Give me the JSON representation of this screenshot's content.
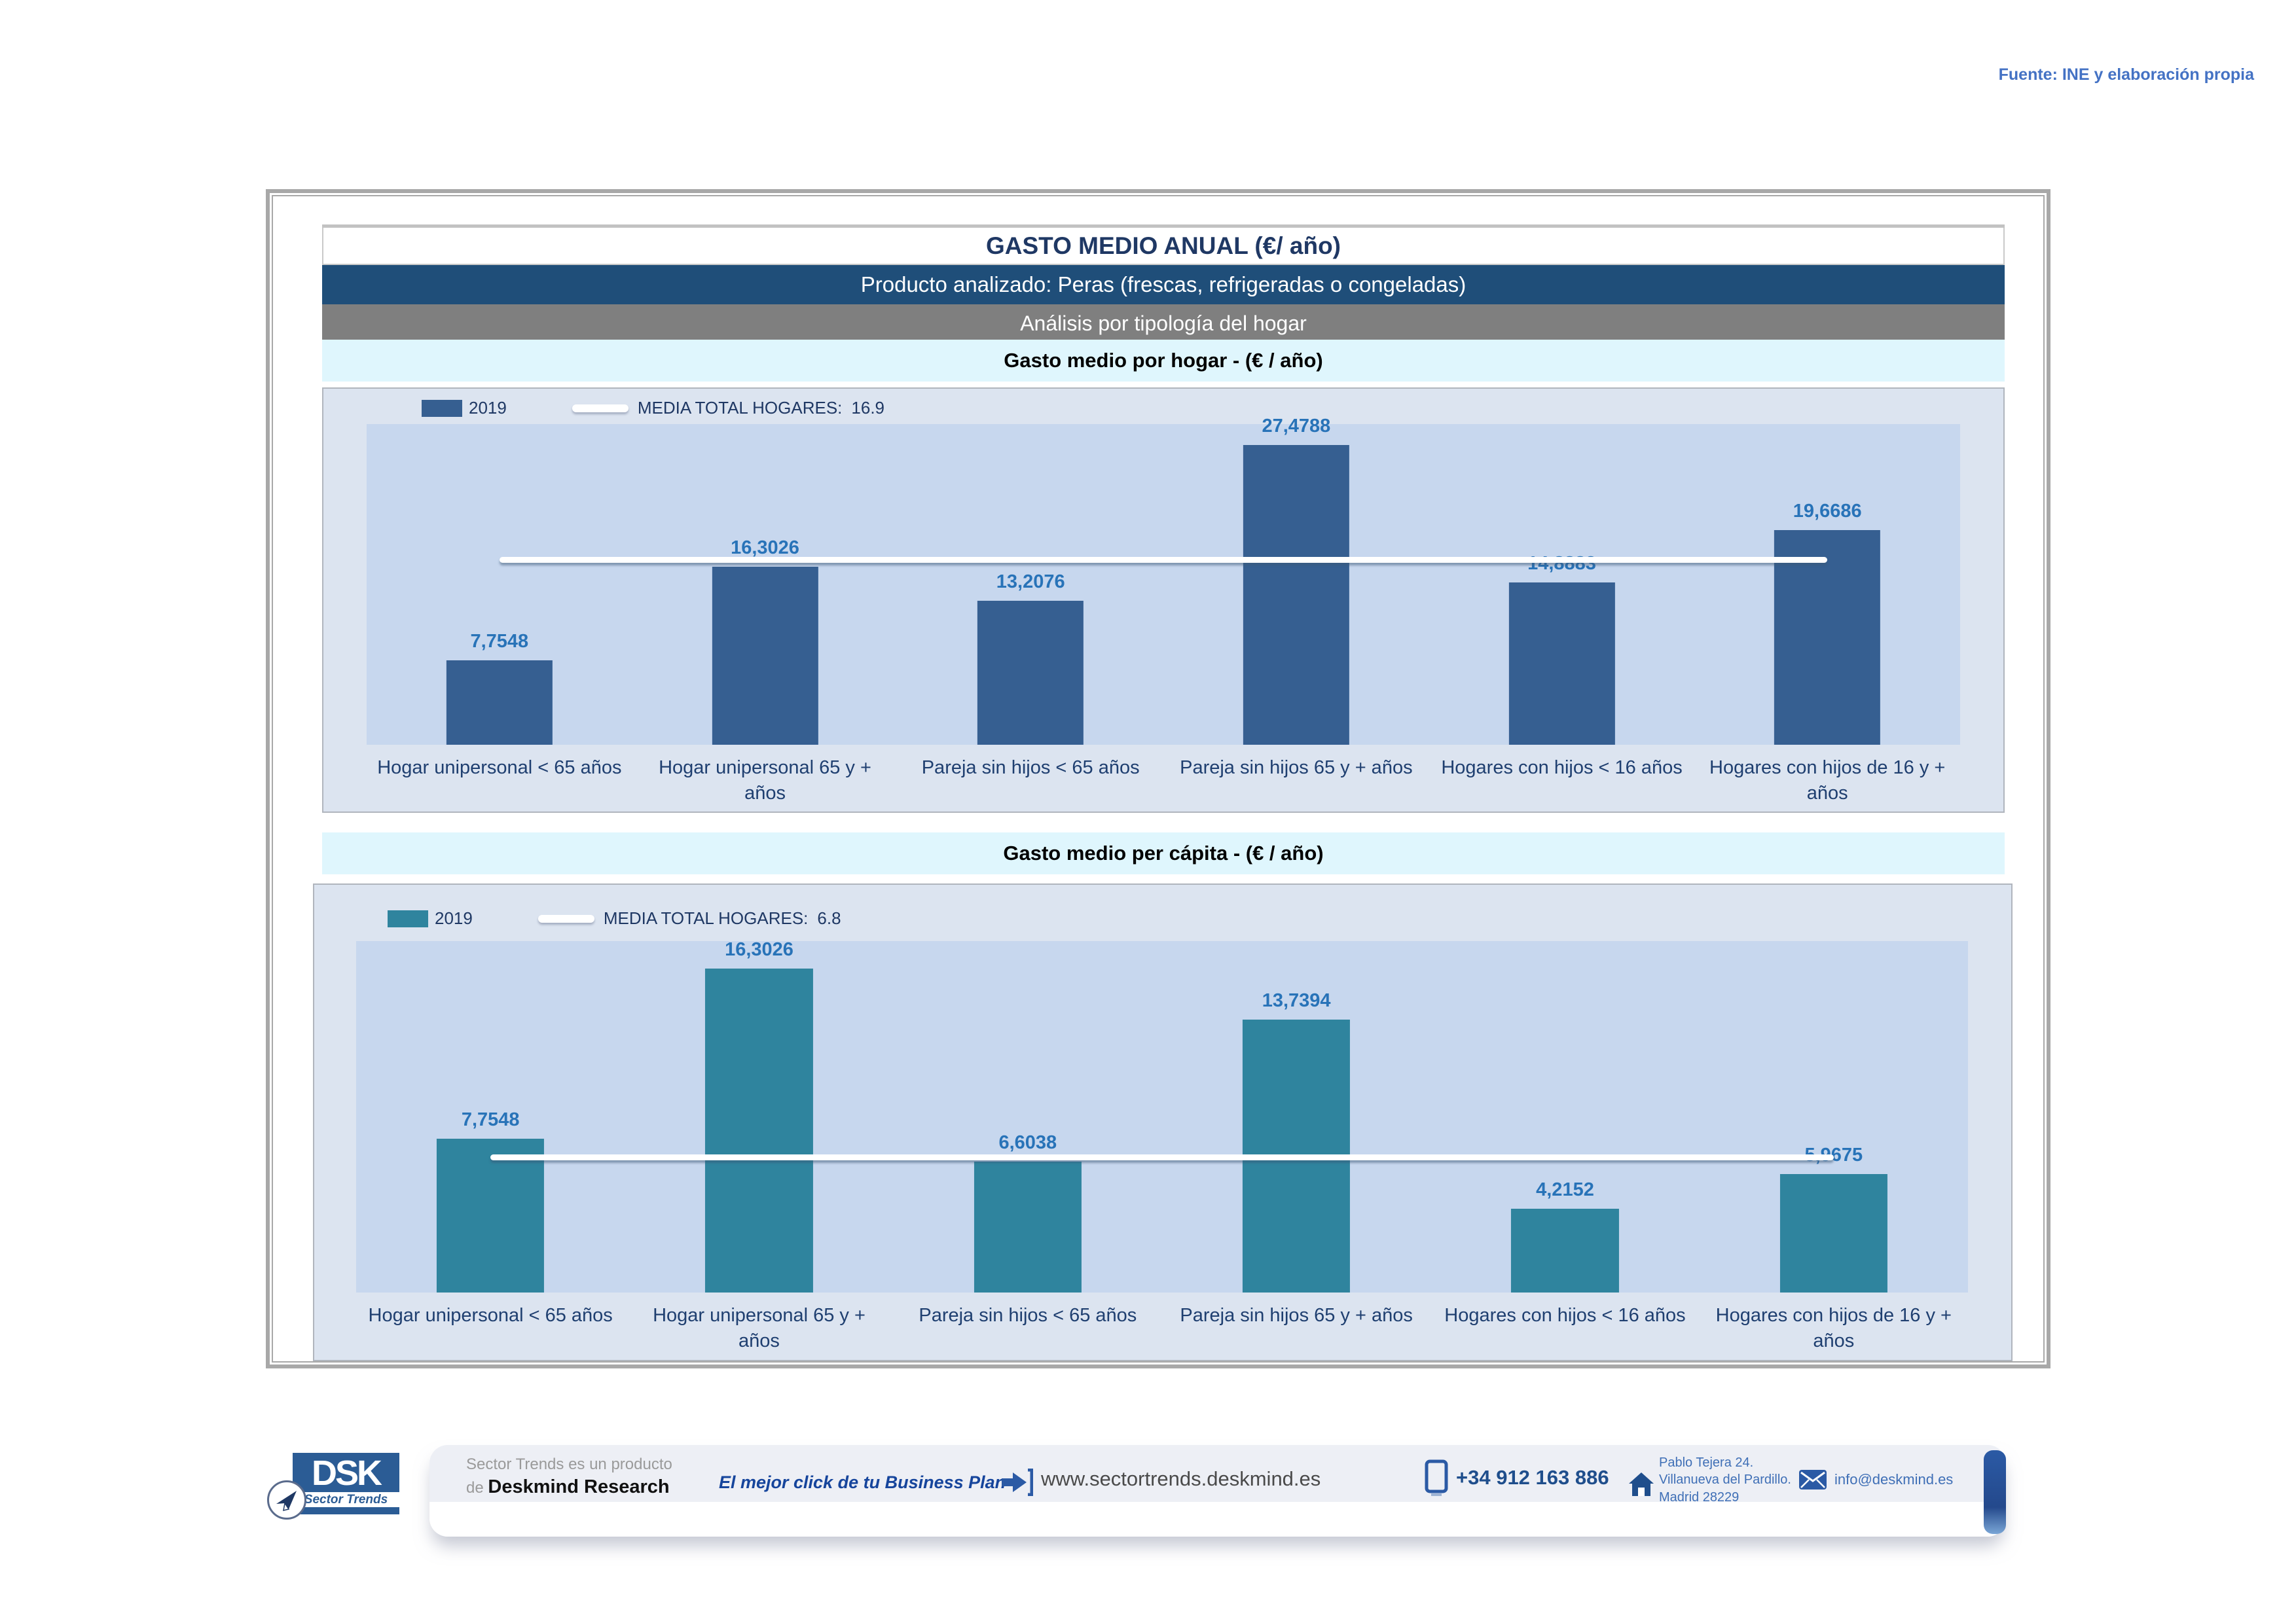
{
  "source_note": "Fuente: INE y elaboración propia",
  "header": {
    "title": "GASTO MEDIO ANUAL (€/ año)",
    "product": "Producto analizado: Peras (frescas, refrigeradas o congeladas)",
    "analysis": "Análisis por tipología del hogar"
  },
  "colors": {
    "navy_text": "#1F3864",
    "header_blue": "#1F4E79",
    "band_gray": "#7F7F7F",
    "band_cyan": "#DFF6FD",
    "panel_bg": "#DCE4F0",
    "plot_bg": "#C7D7EE",
    "bar_blue": "#365F91",
    "bar_teal": "#2F849E",
    "value_label_blue": "#2873B8",
    "accent_blue": "#2B5AA5",
    "source_blue": "#4472C4"
  },
  "chart_data": [
    {
      "type": "bar",
      "title": "Gasto medio por hogar -  (€ / año)",
      "legend": {
        "series_label": "2019",
        "media_label": "MEDIA TOTAL  HOGARES:",
        "media_value": "16.9"
      },
      "categories": [
        "Hogar unipersonal < 65 años",
        "Hogar unipersonal  65 y + años",
        "Pareja sin hijos < 65 años",
        "Pareja sin hijos 65 y + años",
        "Hogares con hijos < 16 años",
        "Hogares con hijos de 16 y + años"
      ],
      "values": [
        7.7548,
        16.3026,
        13.2076,
        27.4788,
        14.8883,
        19.6686
      ],
      "value_labels": [
        "7,7548",
        "16,3026",
        "13,2076",
        "27,4788",
        "14,8883",
        "19,6686"
      ],
      "media_total": 16.9,
      "axis_max": 29.4,
      "ylim": [
        0,
        29.4
      ],
      "bar_color": "#365F91",
      "grid": "off",
      "legend_position": "top-left"
    },
    {
      "type": "bar",
      "title": "Gasto medio per cápita -  (€ / año)",
      "legend": {
        "series_label": "2019",
        "media_label": "MEDIA TOTAL  HOGARES:",
        "media_value": "6.8"
      },
      "categories": [
        "Hogar unipersonal < 65 años",
        "Hogar unipersonal  65 y + años",
        "Pareja sin hijos < 65 años",
        "Pareja sin hijos 65 y + años",
        "Hogares con hijos < 16 años",
        "Hogares con hijos de 16 y + años"
      ],
      "values": [
        7.7548,
        16.3026,
        6.6038,
        13.7394,
        4.2152,
        5.9675
      ],
      "value_labels": [
        "7,7548",
        "16,3026",
        "6,6038",
        "13,7394",
        "4,2152",
        "5,9675"
      ],
      "media_total": 6.8,
      "axis_max": 17.7,
      "ylim": [
        0,
        17.7
      ],
      "bar_color": "#2F849E",
      "grid": "off",
      "legend_position": "top-left"
    }
  ],
  "footer": {
    "product_line1": "Sector Trends es un producto",
    "product_line2_prefix": "de ",
    "product_line2_bold": "Deskmind Research",
    "tagline": "El mejor click de tu Business Plan",
    "website": "www.sectortrends.deskmind.es",
    "phone": "+34 912 163 886",
    "address_line1": "Pablo Tejera 24.",
    "address_line2": "Villanueva del Pardillo.",
    "address_line3": "Madrid 28229",
    "email": "info@deskmind.es",
    "logo": {
      "letters": "DSK",
      "subtitle": "Sector Trends"
    }
  }
}
